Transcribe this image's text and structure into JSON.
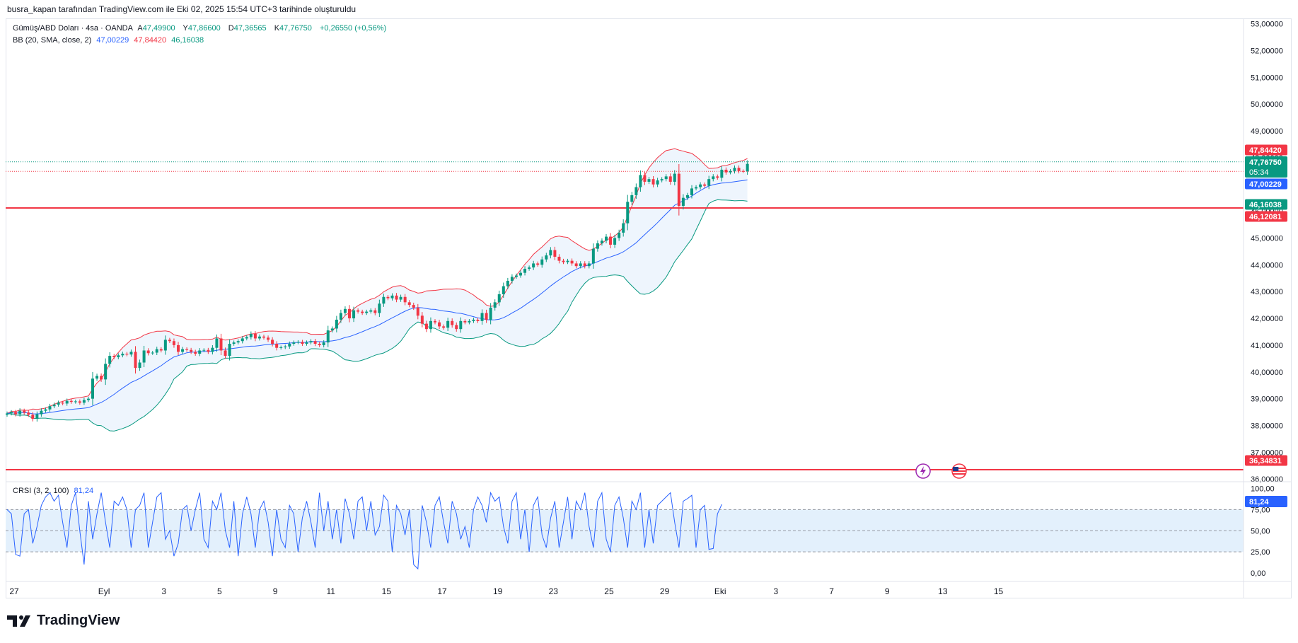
{
  "header": {
    "caption": "busra_kapan tarafından TradingView.com ile Eki 02, 2025 15:54 UTC+3 tarihinde oluşturuldu"
  },
  "legend": {
    "symbol": "Gümüş/ABD Doları · 4sa · OANDA",
    "open_label": "A",
    "open": "47,49900",
    "high_label": "Y",
    "high": "47,86600",
    "low_label": "D",
    "low": "47,36565",
    "close_label": "K",
    "close": "47,76750",
    "change": "+0,26550 (+0,56%)",
    "bb_label": "BB (20, SMA, close, 2)",
    "bb_basis": "47,00229",
    "bb_upper": "47,84420",
    "bb_lower": "46,16038",
    "crsi_label": "CRSI (3, 2, 100)",
    "crsi_value": "81,24"
  },
  "brand": {
    "name": "TradingView"
  },
  "colors": {
    "up": "#089981",
    "down": "#f23645",
    "basis": "#2962ff",
    "upper": "#f23645",
    "lower": "#089981",
    "band_fill": "#eef5fd",
    "crsi": "#2962ff"
  },
  "icons": [
    "lightning-event-icon",
    "us-flag-event-icon"
  ],
  "chart_data": [
    {
      "type": "candlestick",
      "title": "Gümüş/ABD Doları · 4sa · OANDA",
      "ylim": [
        35.9,
        53.2
      ],
      "y_ticks": [
        53,
        52,
        51,
        50,
        49,
        48,
        47,
        46,
        45,
        44,
        43,
        42,
        41,
        40,
        39,
        38,
        37,
        36
      ],
      "y_tick_labels": [
        "53,00000",
        "52,00000",
        "51,00000",
        "50,00000",
        "49,00000",
        "48,00000",
        "47,00000",
        "46,00000",
        "45,00000",
        "44,00000",
        "43,00000",
        "42,00000",
        "41,00000",
        "40,00000",
        "39,00000",
        "38,00000",
        "37,00000",
        "36,00000"
      ],
      "x_labels": [
        "27",
        "Eyl",
        "3",
        "5",
        "9",
        "11",
        "15",
        "17",
        "19",
        "23",
        "25",
        "29",
        "Eki",
        "3",
        "7",
        "9",
        "13",
        "15"
      ],
      "x_label_positions": [
        0,
        21,
        35,
        48,
        61,
        74,
        87,
        100,
        113,
        126,
        139,
        152,
        165,
        178,
        191,
        204,
        217,
        230
      ],
      "closes": [
        38.45,
        38.5,
        38.42,
        38.55,
        38.48,
        38.4,
        38.25,
        38.42,
        38.55,
        38.6,
        38.72,
        38.78,
        38.85,
        38.82,
        38.92,
        38.88,
        38.9,
        38.85,
        38.95,
        39.0,
        39.75,
        39.85,
        39.72,
        40.3,
        40.6,
        40.55,
        40.62,
        40.68,
        40.65,
        40.75,
        40.15,
        40.35,
        40.8,
        40.7,
        40.72,
        40.85,
        40.8,
        41.2,
        41.15,
        41.0,
        40.75,
        40.85,
        40.82,
        40.75,
        40.68,
        40.8,
        40.82,
        40.75,
        40.9,
        41.25,
        40.8,
        40.6,
        41.05,
        41.1,
        41.15,
        41.25,
        41.3,
        41.42,
        41.25,
        41.32,
        41.28,
        41.2,
        41.05,
        40.9,
        40.92,
        40.95,
        41.05,
        41.1,
        41.12,
        41.05,
        41.1,
        41.15,
        41.05,
        41.0,
        41.1,
        41.55,
        41.62,
        41.95,
        42.2,
        42.35,
        42.0,
        42.3,
        42.25,
        42.2,
        42.25,
        42.3,
        42.2,
        42.55,
        42.8,
        42.75,
        42.85,
        42.7,
        42.8,
        42.6,
        42.5,
        42.4,
        42.1,
        41.8,
        41.6,
        41.9,
        41.85,
        41.7,
        41.65,
        41.9,
        41.75,
        41.6,
        41.9,
        41.85,
        41.9,
        41.95,
        41.9,
        42.2,
        41.95,
        42.4,
        42.6,
        42.9,
        43.2,
        43.4,
        43.55,
        43.6,
        43.7,
        43.85,
        43.9,
        44.05,
        44.0,
        44.2,
        44.35,
        44.55,
        44.3,
        44.15,
        44.1,
        44.15,
        44.05,
        43.95,
        44.05,
        43.95,
        44.05,
        44.6,
        44.8,
        44.9,
        45.05,
        44.75,
        45.0,
        45.2,
        45.55,
        46.35,
        46.6,
        46.9,
        47.35,
        47.1,
        47.2,
        47.0,
        47.15,
        47.2,
        47.3,
        47.1,
        47.4,
        46.2,
        46.5,
        46.6,
        46.85,
        46.9,
        47.0,
        46.95,
        47.2,
        47.3,
        47.25,
        47.55,
        47.45,
        47.5,
        47.62,
        47.5,
        47.49,
        47.77
      ],
      "current_price": "47,76750",
      "countdown": "05:34",
      "price_badges": [
        {
          "value": 47.8442,
          "label": "47,84420",
          "color": "#f23645"
        },
        {
          "value": 47.7675,
          "label": "47,76750",
          "color": "#089981"
        },
        {
          "value": 47.00229,
          "label": "47,00229",
          "color": "#2962ff"
        },
        {
          "value": 46.16038,
          "label": "46,16038",
          "color": "#089981"
        },
        {
          "value": 46.12081,
          "label": "46,12081",
          "color": "#f23645"
        },
        {
          "value": 36.34831,
          "label": "36,34831",
          "color": "#f23645"
        }
      ],
      "horizontal_lines": [
        46.12081,
        36.34831
      ],
      "bollinger": {
        "period": 20,
        "mult": 2
      }
    },
    {
      "type": "line",
      "title": "CRSI (3, 2, 100)",
      "ylim": [
        -10,
        108
      ],
      "y_ticks": [
        100,
        75,
        50,
        25,
        0
      ],
      "y_tick_labels": [
        "100,00",
        "75,00",
        "50,00",
        "25,00",
        "0,00"
      ],
      "band": [
        25,
        75
      ],
      "midline": 50,
      "values": [
        75,
        70,
        22,
        20,
        70,
        75,
        35,
        55,
        80,
        90,
        95,
        85,
        92,
        60,
        30,
        80,
        95,
        50,
        10,
        85,
        40,
        70,
        95,
        60,
        30,
        85,
        80,
        90,
        75,
        30,
        75,
        80,
        95,
        30,
        60,
        90,
        95,
        40,
        50,
        20,
        35,
        75,
        80,
        50,
        75,
        95,
        40,
        30,
        85,
        75,
        95,
        50,
        30,
        85,
        20,
        70,
        90,
        70,
        30,
        75,
        85,
        60,
        20,
        75,
        40,
        30,
        80,
        70,
        25,
        65,
        85,
        60,
        30,
        95,
        50,
        85,
        40,
        75,
        35,
        88,
        70,
        40,
        85,
        90,
        50,
        85,
        45,
        55,
        92,
        85,
        25,
        80,
        70,
        45,
        75,
        10,
        5,
        80,
        60,
        30,
        80,
        90,
        60,
        35,
        85,
        70,
        40,
        55,
        30,
        75,
        90,
        80,
        60,
        95,
        85,
        90,
        55,
        35,
        85,
        95,
        40,
        75,
        25,
        80,
        90,
        45,
        30,
        65,
        85,
        30,
        60,
        90,
        40,
        85,
        75,
        95,
        55,
        30,
        85,
        95,
        40,
        25,
        80,
        90,
        65,
        30,
        85,
        75,
        95,
        30,
        75,
        35,
        80,
        85,
        90,
        95,
        60,
        30,
        85,
        88,
        92,
        30,
        75,
        80,
        28,
        29,
        70,
        81.24
      ],
      "line_value_label": "81,24"
    }
  ]
}
